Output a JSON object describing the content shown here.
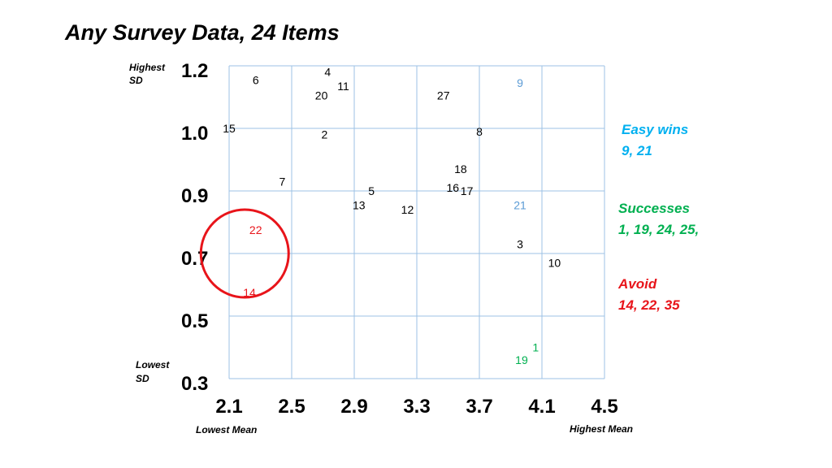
{
  "chart_data": {
    "type": "scatter",
    "title": "Any Survey Data, 24 Items",
    "x_ticks": [
      "2.1",
      "2.5",
      "2.9",
      "3.3",
      "3.7",
      "4.1",
      "4.5"
    ],
    "y_ticks": [
      "1.2",
      "1.0",
      "0.9",
      "0.7",
      "0.5",
      "0.3"
    ],
    "xlim": [
      2.1,
      4.5
    ],
    "y_label_top": [
      "Highest",
      "SD"
    ],
    "y_label_bottom": [
      "Lowest",
      "SD"
    ],
    "x_label_left": "Lowest Mean",
    "x_label_right": "Highest Mean",
    "grid": true,
    "points": [
      {
        "label": "4",
        "x": 2.73,
        "y": 1.18,
        "color": "#000000"
      },
      {
        "label": "6",
        "x": 2.27,
        "y": 1.155,
        "color": "#000000"
      },
      {
        "label": "11",
        "x": 2.83,
        "y": 1.135,
        "color": "#000000"
      },
      {
        "label": "20",
        "x": 2.69,
        "y": 1.105,
        "color": "#000000"
      },
      {
        "label": "27",
        "x": 3.47,
        "y": 1.105,
        "color": "#000000"
      },
      {
        "label": "9",
        "x": 3.96,
        "y": 1.145,
        "color": "#5b9bd5"
      },
      {
        "label": "15",
        "x": 2.1,
        "y": 1.0,
        "color": "#000000"
      },
      {
        "label": "2",
        "x": 2.71,
        "y": 0.99,
        "color": "#000000"
      },
      {
        "label": "8",
        "x": 3.7,
        "y": 0.995,
        "color": "#000000"
      },
      {
        "label": "18",
        "x": 3.58,
        "y": 0.935,
        "color": "#000000"
      },
      {
        "label": "16",
        "x": 3.53,
        "y": 0.905,
        "color": "#000000"
      },
      {
        "label": "17",
        "x": 3.62,
        "y": 0.9,
        "color": "#000000"
      },
      {
        "label": "7",
        "x": 2.44,
        "y": 0.915,
        "color": "#000000"
      },
      {
        "label": "5",
        "x": 3.01,
        "y": 0.9,
        "color": "#000000"
      },
      {
        "label": "13",
        "x": 2.93,
        "y": 0.855,
        "color": "#000000"
      },
      {
        "label": "12",
        "x": 3.24,
        "y": 0.84,
        "color": "#000000"
      },
      {
        "label": "21",
        "x": 3.96,
        "y": 0.855,
        "color": "#5b9bd5"
      },
      {
        "label": "22",
        "x": 2.27,
        "y": 0.775,
        "color": "#e8141a"
      },
      {
        "label": "3",
        "x": 3.96,
        "y": 0.73,
        "color": "#000000"
      },
      {
        "label": "10",
        "x": 4.18,
        "y": 0.67,
        "color": "#000000"
      },
      {
        "label": "14",
        "x": 2.23,
        "y": 0.575,
        "color": "#e8141a"
      },
      {
        "label": "1",
        "x": 4.06,
        "y": 0.4,
        "color": "#00b050"
      },
      {
        "label": "19",
        "x": 3.97,
        "y": 0.36,
        "color": "#00b050"
      }
    ],
    "annotation_circle": {
      "x": 2.2,
      "y": 0.7,
      "color": "#e8141a"
    },
    "side_groups": [
      {
        "heading": "Easy wins",
        "items": "9, 21",
        "color": "#00b0f0"
      },
      {
        "heading": "Successes",
        "items": "1, 19, 24, 25,",
        "color": "#00b050"
      },
      {
        "heading": "Avoid",
        "items": "14, 22, 35",
        "color": "#e8141a"
      }
    ]
  }
}
